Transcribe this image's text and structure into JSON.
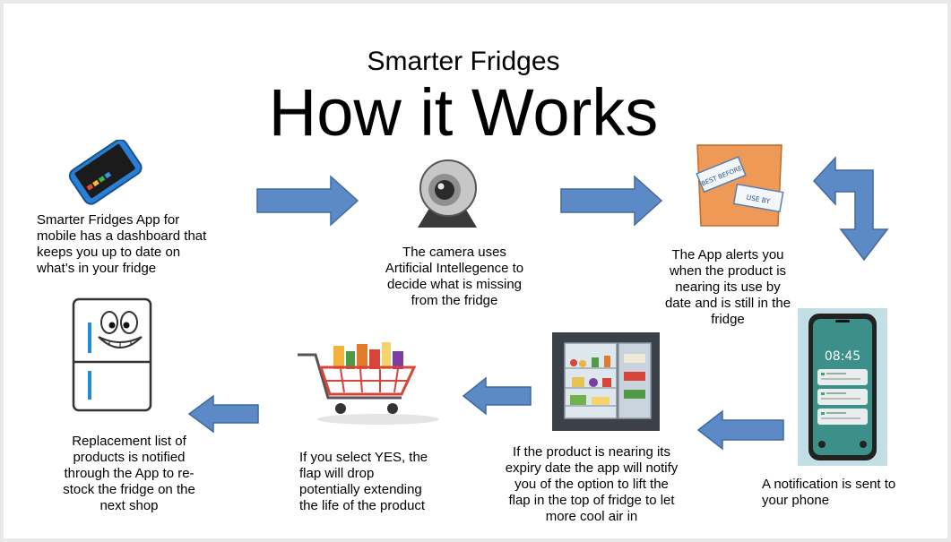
{
  "subtitle": "Smarter Fridges",
  "title": "How it Works",
  "steps": [
    {
      "text": "Smarter Fridges App for\nmobile has a dashboard that\nkeeps you up to date on\nwhat’s in your fridge"
    },
    {
      "text": "The camera uses\nArtificial Intellegence to\ndecide what is missing\nfrom the fridge"
    },
    {
      "text": "The App alerts you\nwhen the product is\nnearing its use by\ndate and is still in the\nfridge"
    },
    {
      "text": "A notification is sent to\nyour phone"
    },
    {
      "text": "If the product is nearing its\nexpiry date the app will notify\nyou of the option to lift the\nflap in the top of fridge to let\nmore cool air in"
    },
    {
      "text": "If you select YES, the\nflap will drop\npotentially extending\nthe life of the product"
    },
    {
      "text": "Replacement list of\nproducts is notified\nthrough the App to re-\nstock the fridge on the\nnext shop"
    }
  ],
  "images": {
    "phone_time": "08:45",
    "label_best_before": "BEST BEFORE",
    "label_use_by": "USE BY"
  },
  "icons": [
    "smartphone-icon",
    "webcam-icon",
    "food-labels-icon",
    "phone-notification-icon",
    "open-fridge-icon",
    "shopping-cart-icon",
    "fridge-cartoon-icon",
    "arrow-right-icon",
    "arrow-left-icon",
    "u-turn-arrow-icon"
  ],
  "colors": {
    "arrow_fill": "#5b8ac6",
    "arrow_stroke": "#41699e",
    "text": "#000000",
    "background": "#ffffff"
  }
}
